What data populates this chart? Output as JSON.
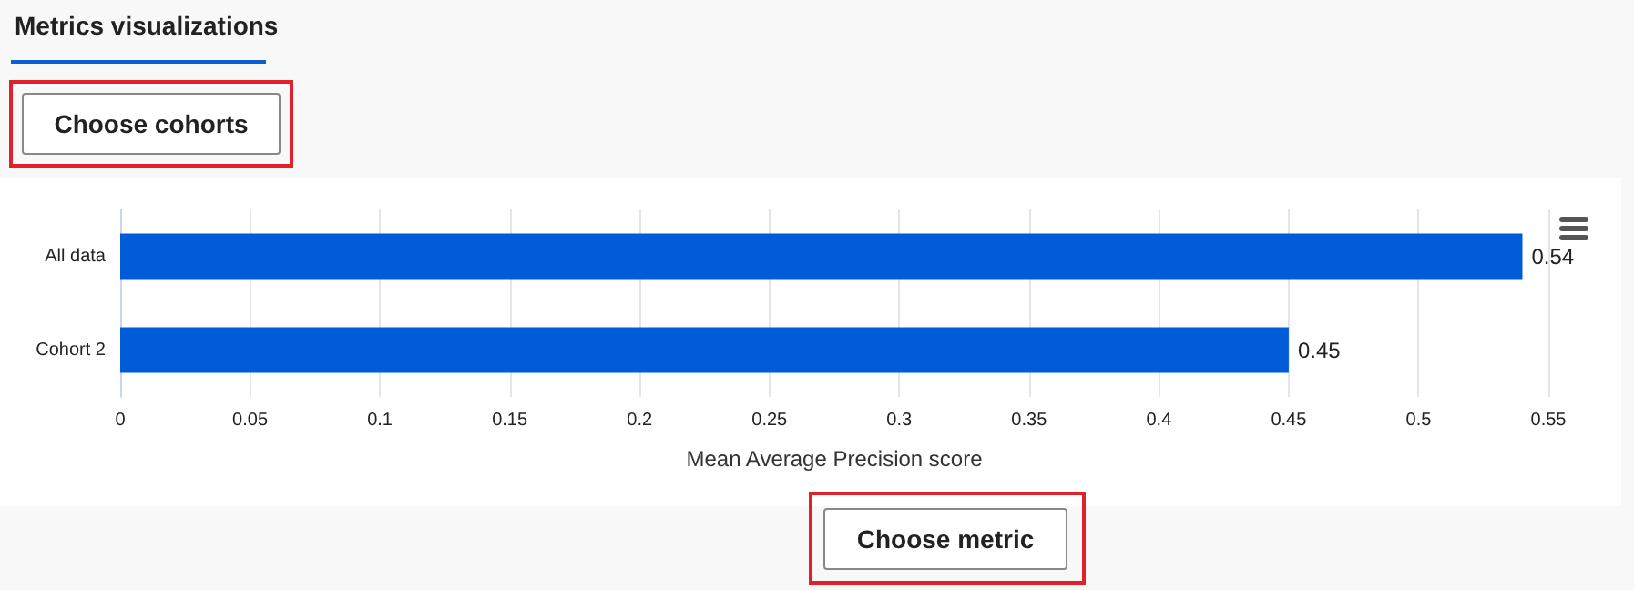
{
  "chart_data": {
    "type": "bar",
    "orientation": "horizontal",
    "xlabel": "Mean Average Precision score",
    "categories": [
      "All data",
      "Cohort 2"
    ],
    "values": [
      0.54,
      0.45
    ],
    "color": "#005bd8",
    "xlim": [
      0,
      0.55
    ],
    "xticks": [
      0,
      0.05,
      0.1,
      0.15,
      0.2,
      0.25,
      0.3,
      0.35,
      0.4,
      0.45,
      0.5,
      0.55
    ],
    "grid": "x",
    "data_labels": true,
    "annotations": [
      "Metrics visualizations",
      "Choose cohorts",
      "Choose metric"
    ]
  }
}
